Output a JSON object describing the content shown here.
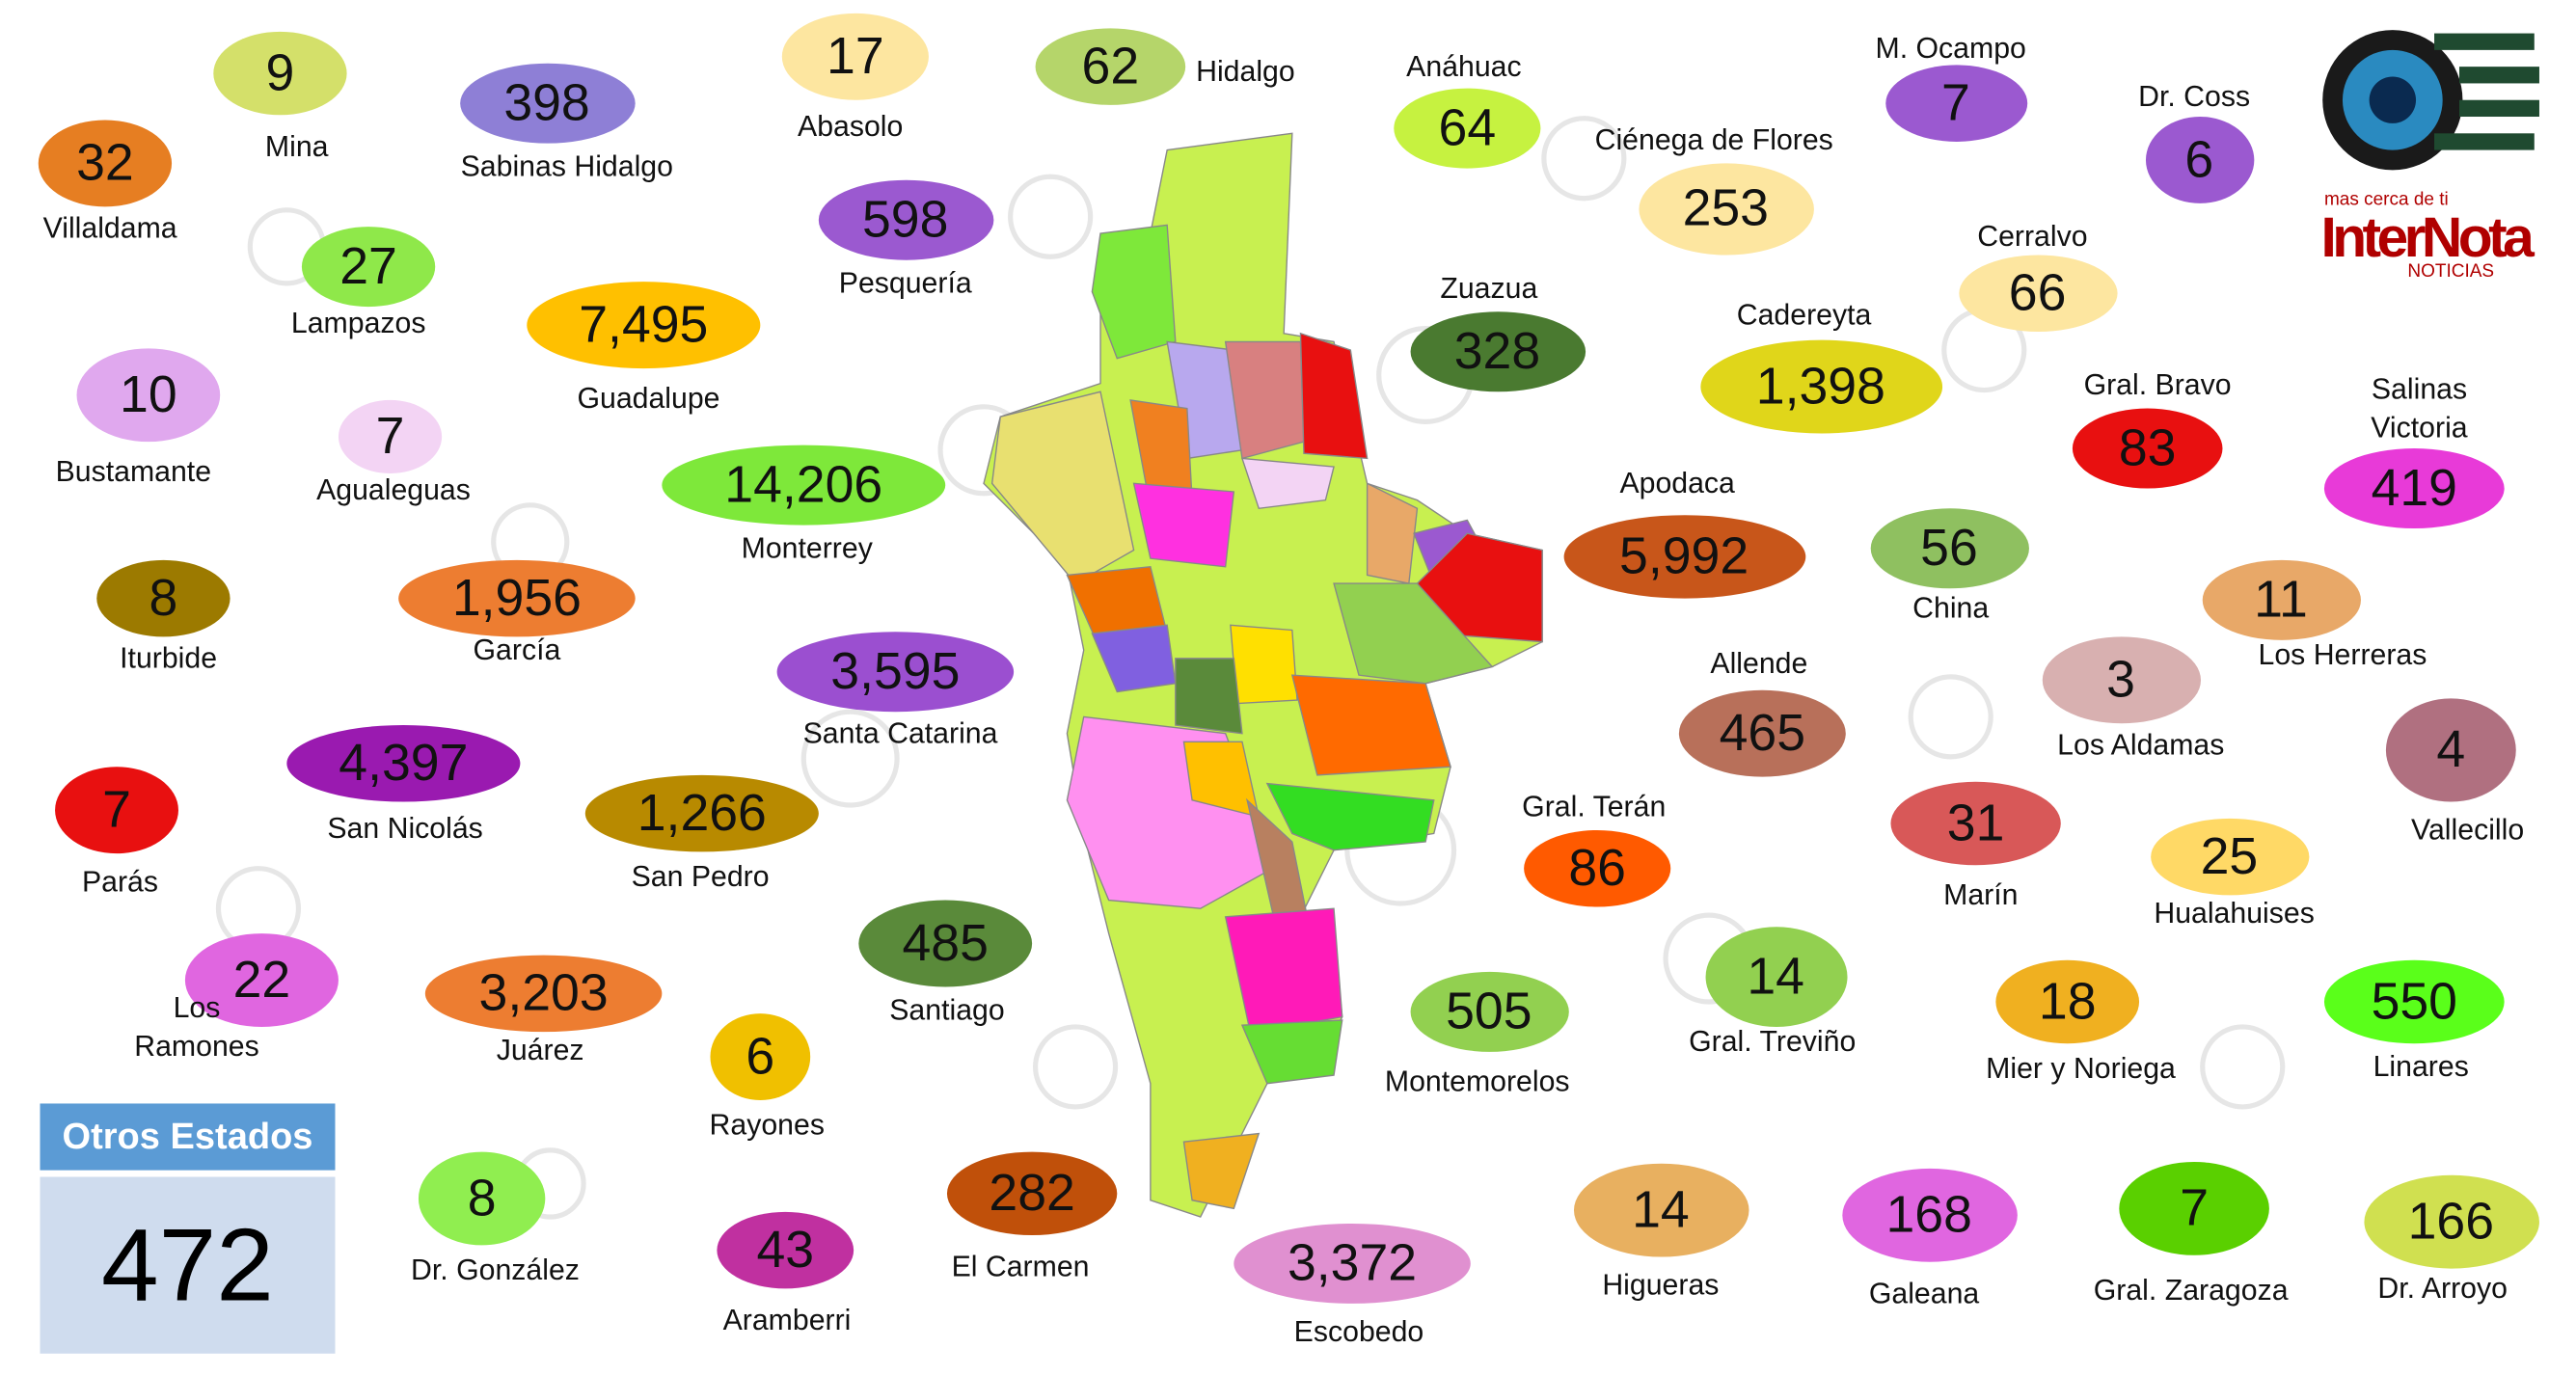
{
  "logo": {
    "tagline": "mas cerca de ti",
    "name": "InterNota",
    "subtitle": "NOTICIAS"
  },
  "municipalities": [
    {
      "name": "Mina",
      "cases": "9",
      "color": "#d4e06a"
    },
    {
      "name": "Villaldama",
      "cases": "32",
      "color": "#e67e22"
    },
    {
      "name": "Sabinas Hidalgo",
      "cases": "398",
      "color": "#8e7fd6"
    },
    {
      "name": "Abasolo",
      "cases": "17",
      "color": "#fde6a0"
    },
    {
      "name": "Hidalgo",
      "cases": "62",
      "color": "#b5d56a"
    },
    {
      "name": "Anáhuac",
      "cases": "64",
      "color": "#c6f240"
    },
    {
      "name": "Ciénega de Flores",
      "cases": "253",
      "color": "#fde6a0"
    },
    {
      "name": "M. Ocampo",
      "cases": "7",
      "color": "#9b59d0"
    },
    {
      "name": "Dr. Coss",
      "cases": "6",
      "color": "#9b59d0"
    },
    {
      "name": "Lampazos",
      "cases": "27",
      "color": "#8fe84a"
    },
    {
      "name": "Pesquería",
      "cases": "598",
      "color": "#9b59d0"
    },
    {
      "name": "Guadalupe",
      "cases": "7,495",
      "color": "#ffc000"
    },
    {
      "name": "Zuazua",
      "cases": "328",
      "color": "#4a7a30"
    },
    {
      "name": "Cadereyta",
      "cases": "1,398",
      "color": "#e0d61a"
    },
    {
      "name": "Cerralvo",
      "cases": "66",
      "color": "#fde6a0"
    },
    {
      "name": "Bustamante",
      "cases": "10",
      "color": "#e0a8ee"
    },
    {
      "name": "Agualeguas",
      "cases": "7",
      "color": "#f3d4f4"
    },
    {
      "name": "Monterrey",
      "cases": "14,206",
      "color": "#7ee83a"
    },
    {
      "name": "Gral. Bravo",
      "cases": "83",
      "color": "#e81010"
    },
    {
      "name": "Salinas Victoria",
      "cases": "419",
      "color": "#e83ad8"
    },
    {
      "name": "Apodaca",
      "cases": "5,992",
      "color": "#c8561a"
    },
    {
      "name": "China",
      "cases": "56",
      "color": "#8fc060"
    },
    {
      "name": "Iturbide",
      "cases": "8",
      "color": "#9c7a00"
    },
    {
      "name": "García",
      "cases": "1,956",
      "color": "#ed7d31"
    },
    {
      "name": "Los Herreras",
      "cases": "11",
      "color": "#e8a868"
    },
    {
      "name": "Santa Catarina",
      "cases": "3,595",
      "color": "#9b4fd0"
    },
    {
      "name": "Allende",
      "cases": "465",
      "color": "#b8705a"
    },
    {
      "name": "Los Aldamas",
      "cases": "3",
      "color": "#d8b0b0"
    },
    {
      "name": "Vallecillo",
      "cases": "4",
      "color": "#b07080"
    },
    {
      "name": "Parás",
      "cases": "7",
      "color": "#e81010"
    },
    {
      "name": "San Nicolás",
      "cases": "4,397",
      "color": "#9a1ab0"
    },
    {
      "name": "San Pedro",
      "cases": "1,266",
      "color": "#b88a00"
    },
    {
      "name": "Gral. Terán",
      "cases": "86",
      "color": "#ff5a00"
    },
    {
      "name": "Marín",
      "cases": "31",
      "color": "#d85858"
    },
    {
      "name": "Hualahuises",
      "cases": "25",
      "color": "#ffd966"
    },
    {
      "name": "Los Ramones",
      "cases": "22",
      "color": "#e066e0"
    },
    {
      "name": "Juárez",
      "cases": "3,203",
      "color": "#ed7d31"
    },
    {
      "name": "Santiago",
      "cases": "485",
      "color": "#5a8a3a"
    },
    {
      "name": "Montemorelos",
      "cases": "505",
      "color": "#92d050"
    },
    {
      "name": "Gral. Treviño",
      "cases": "14",
      "color": "#92d050"
    },
    {
      "name": "Mier y Noriega",
      "cases": "18",
      "color": "#f0b020"
    },
    {
      "name": "Linares",
      "cases": "550",
      "color": "#5aff1a"
    },
    {
      "name": "Rayones",
      "cases": "6",
      "color": "#f0c000"
    },
    {
      "name": "Dr. González",
      "cases": "8",
      "color": "#90ee50"
    },
    {
      "name": "Aramberri",
      "cases": "43",
      "color": "#c030a0"
    },
    {
      "name": "El Carmen",
      "cases": "282",
      "color": "#c0500a"
    },
    {
      "name": "Escobedo",
      "cases": "3,372",
      "color": "#e090d0"
    },
    {
      "name": "Higueras",
      "cases": "14",
      "color": "#e8b060"
    },
    {
      "name": "Galeana",
      "cases": "168",
      "color": "#e066e0"
    },
    {
      "name": "Gral. Zaragoza",
      "cases": "7",
      "color": "#5ad000"
    },
    {
      "name": "Dr. Arroyo",
      "cases": "166",
      "color": "#d0e050"
    }
  ],
  "other_states": {
    "label": "Otros Estados",
    "cases": "472"
  }
}
